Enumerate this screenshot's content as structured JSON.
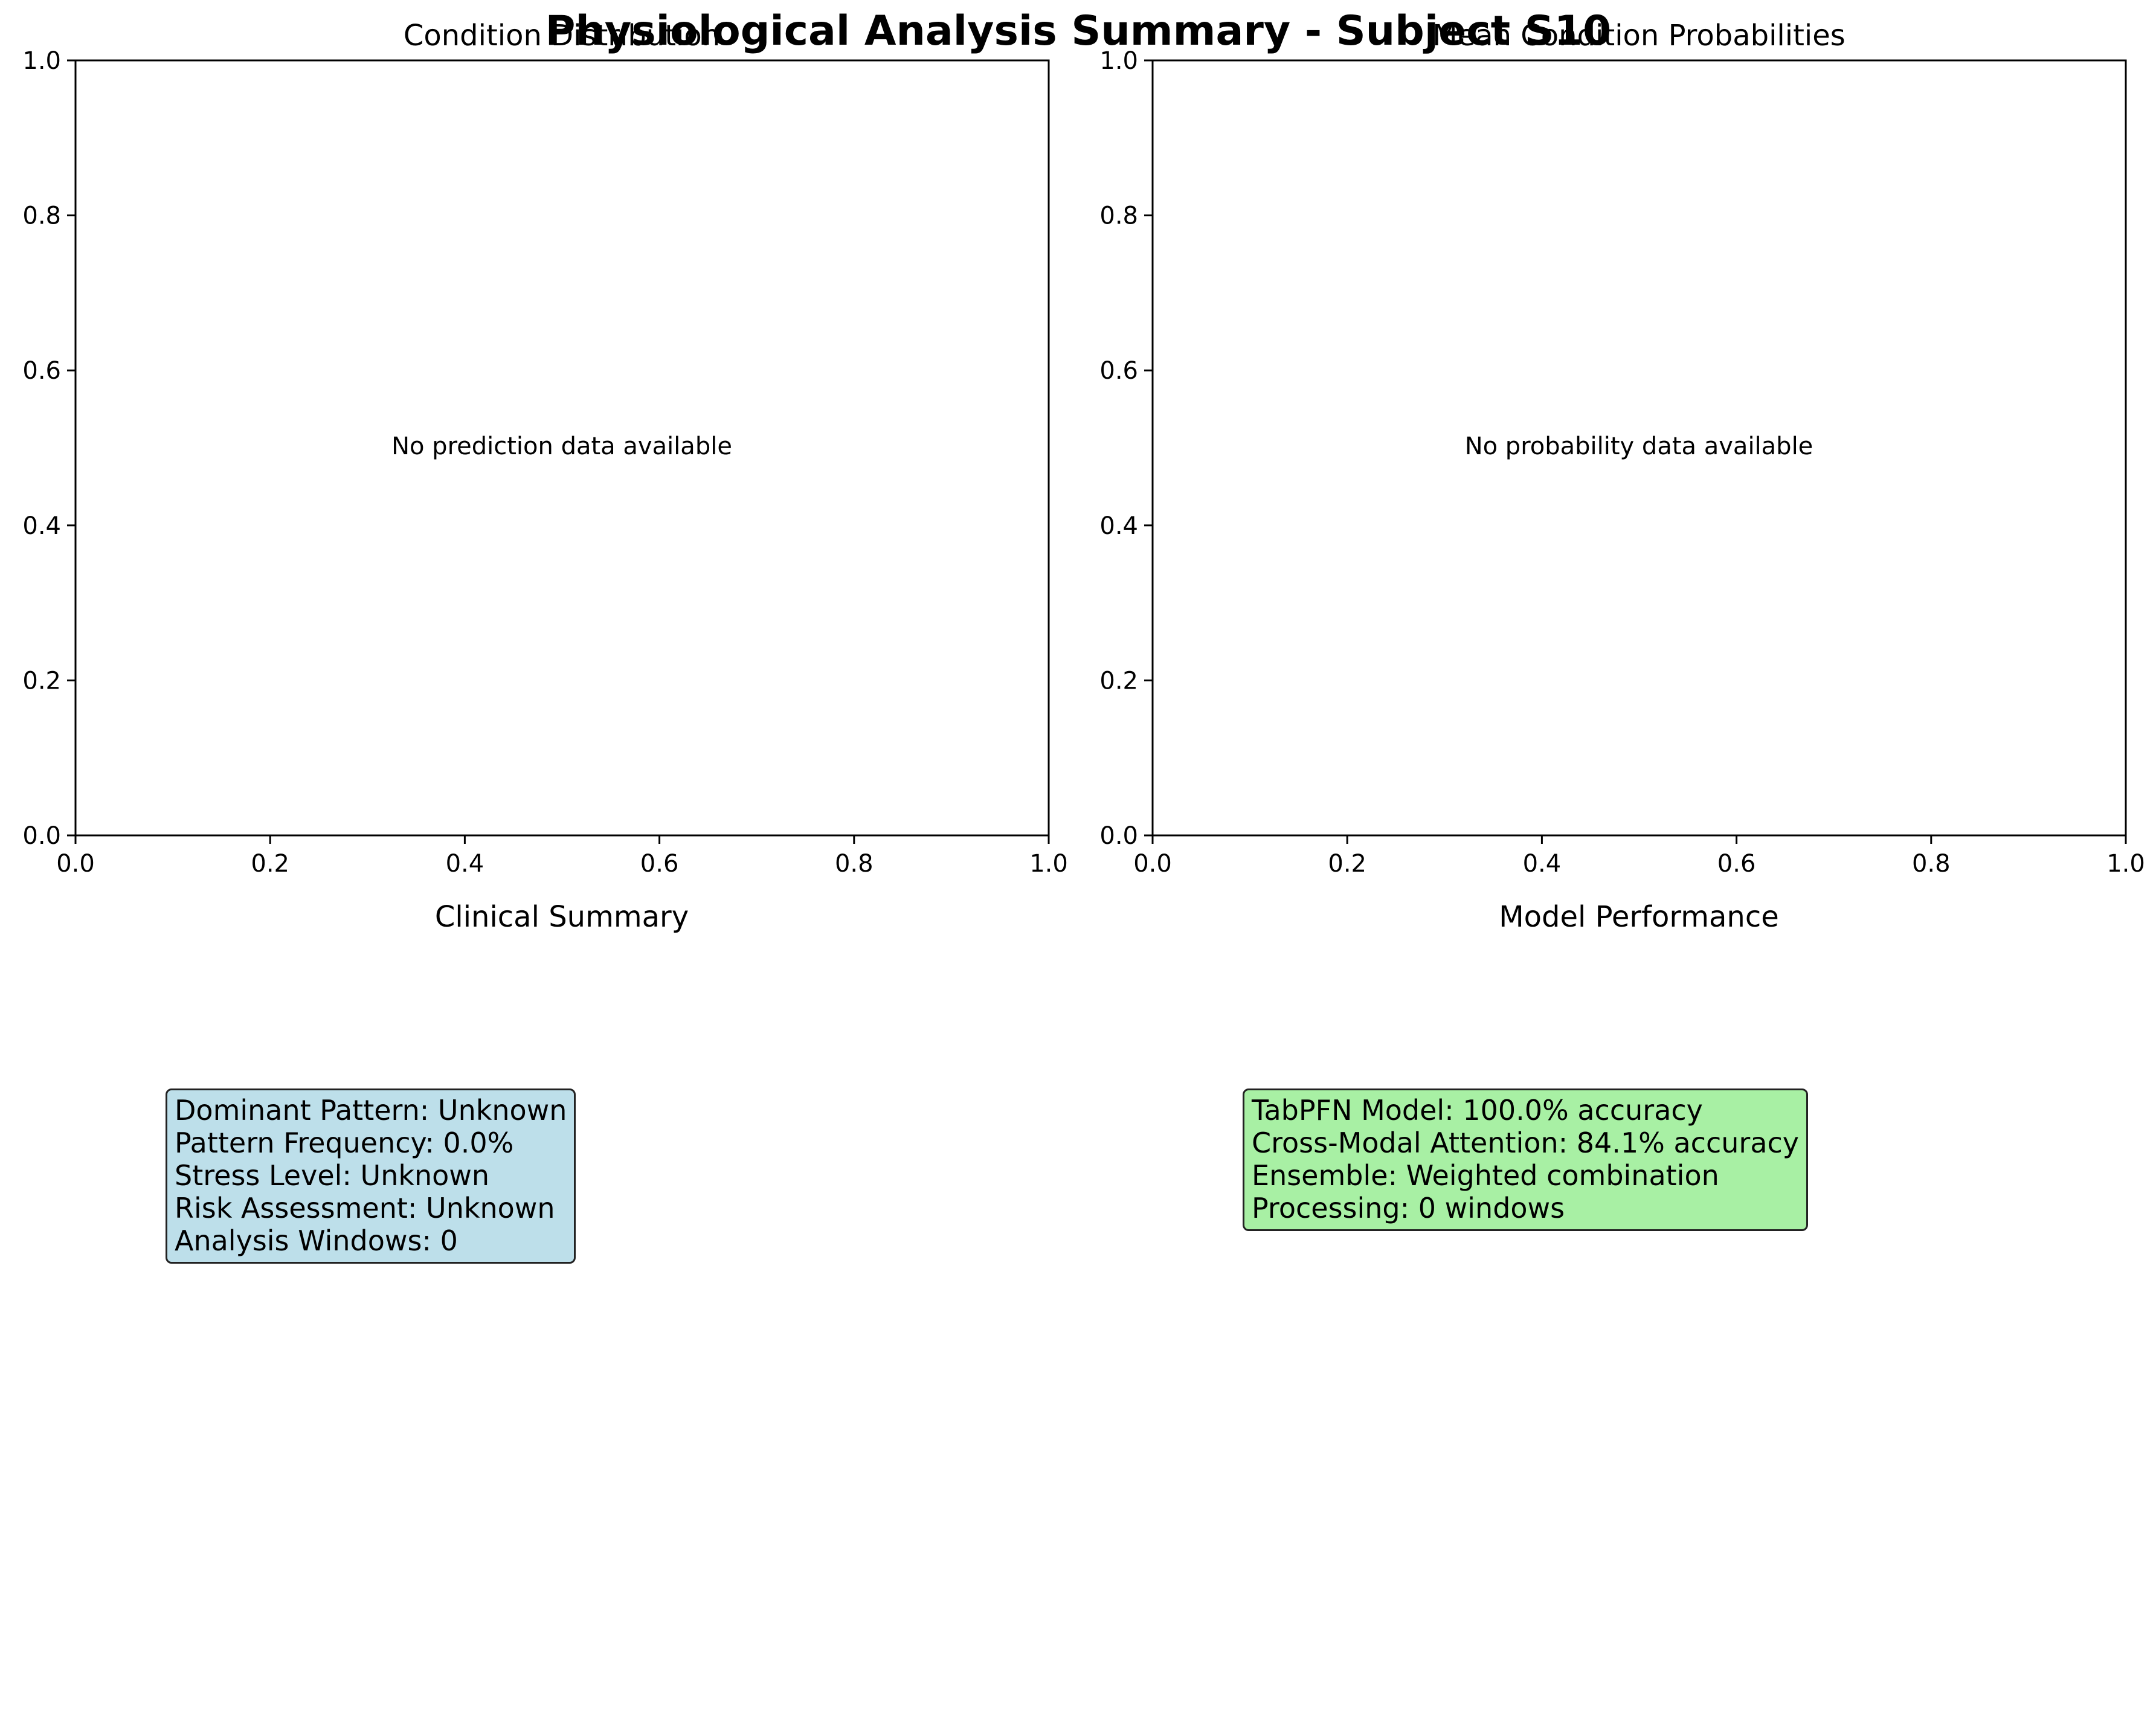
{
  "figure_title": "Physiological Analysis Summary - Subject S10",
  "chart_data": [
    {
      "type": "bar",
      "title": "Condition Distribution",
      "xlabel": "",
      "ylabel": "",
      "xlim": [
        0,
        1
      ],
      "ylim": [
        0,
        1
      ],
      "xticks": [
        "0.0",
        "0.2",
        "0.4",
        "0.6",
        "0.8",
        "1.0"
      ],
      "yticks": [
        "0.0",
        "0.2",
        "0.4",
        "0.6",
        "0.8",
        "1.0"
      ],
      "series": [],
      "annotation": "No prediction data available",
      "grid": false
    },
    {
      "type": "bar",
      "title": "Mean Condition Probabilities",
      "xlabel": "",
      "ylabel": "",
      "xlim": [
        0,
        1
      ],
      "ylim": [
        0,
        1
      ],
      "xticks": [
        "0.0",
        "0.2",
        "0.4",
        "0.6",
        "0.8",
        "1.0"
      ],
      "yticks": [
        "0.0",
        "0.2",
        "0.4",
        "0.6",
        "0.8",
        "1.0"
      ],
      "series": [],
      "annotation": "No probability data available",
      "grid": false
    }
  ],
  "clinical_summary": {
    "title": "Clinical Summary",
    "lines": [
      "Dominant Pattern: Unknown",
      "Pattern Frequency: 0.0%",
      "Stress Level: Unknown",
      "Risk Assessment: Unknown",
      "Analysis Windows: 0"
    ],
    "box_color": "#bddfea"
  },
  "model_performance": {
    "title": "Model Performance",
    "lines": [
      "TabPFN Model: 100.0% accuracy",
      "Cross-Modal Attention: 84.1% accuracy",
      "Ensemble: Weighted combination",
      "Processing: 0 windows"
    ],
    "box_color": "#a8f0a4"
  }
}
